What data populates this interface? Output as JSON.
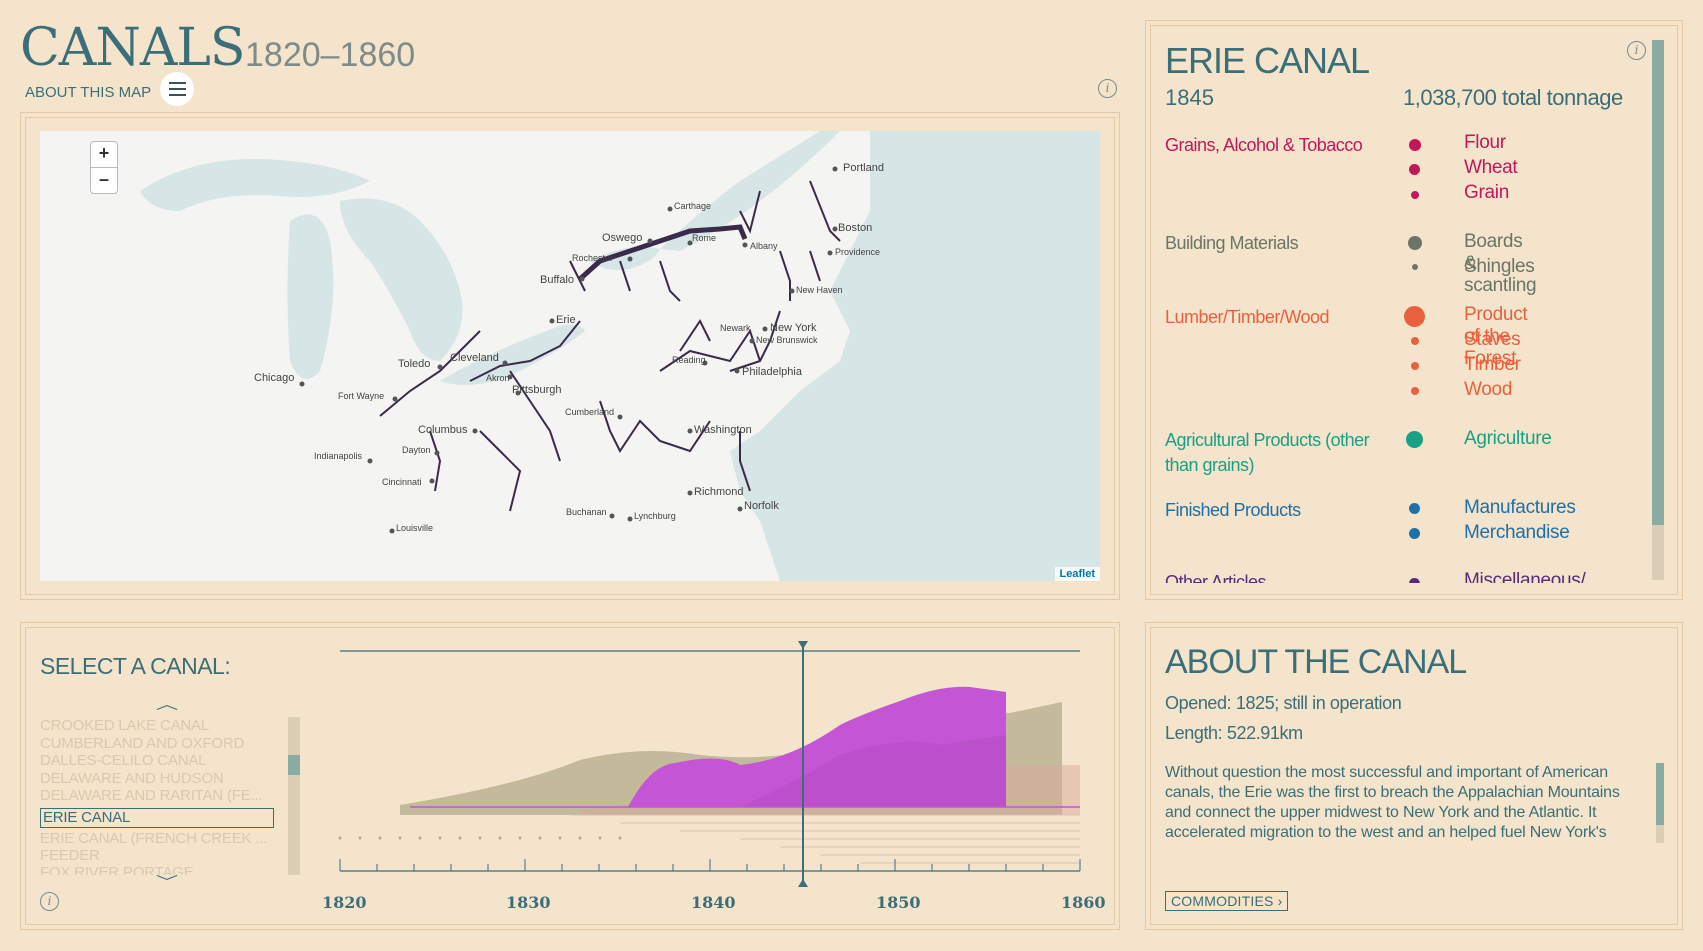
{
  "header": {
    "title": "CANALS",
    "years": "1820–1860",
    "about_link": "ABOUT THIS MAP"
  },
  "map": {
    "zoom_in": "+",
    "zoom_out": "–",
    "attribution": "Leaflet",
    "cities": [
      "Portland",
      "Carthage",
      "Oswego",
      "Rome",
      "Albany",
      "Boston",
      "Providence",
      "Rochester",
      "Buffalo",
      "New Haven",
      "Erie",
      "Newark",
      "New York",
      "New Brunswick",
      "Cleveland",
      "Toledo",
      "Akron",
      "Reading",
      "Philadelphia",
      "Chicago",
      "Fort Wayne",
      "Pittsburgh",
      "Cumberland",
      "Washington",
      "Columbus",
      "Dayton",
      "Indianapolis",
      "Cincinnati",
      "Richmond",
      "Norfolk",
      "Buchanan",
      "Lynchburg",
      "Louisville"
    ]
  },
  "detail": {
    "canal_name": "ERIE CANAL",
    "year": "1845",
    "tonnage": "1,038,700 total tonnage",
    "categories": [
      {
        "label": "Grains, Alcohol & Tobacco",
        "color": "#c2185b",
        "items": [
          "Flour",
          "Wheat",
          "Grain"
        ]
      },
      {
        "label": "Building Materials",
        "color": "#6b7566",
        "items": [
          "Boards & scantling",
          "Shingles"
        ]
      },
      {
        "label": "Lumber/Timber/Wood",
        "color": "#e9603f",
        "items": [
          "Product of the Forest",
          "Staves",
          "Timber",
          "Wood"
        ]
      },
      {
        "label": "Agricultural Products (other than grains)",
        "color": "#1aa084",
        "items": [
          "Agriculture"
        ]
      },
      {
        "label": "Finished Products",
        "color": "#1f6fa8",
        "items": [
          "Manufactures",
          "Merchandise"
        ]
      },
      {
        "label": "Other Articles",
        "color": "#5a2a7a",
        "items": [
          "Miscellaneous/"
        ]
      }
    ]
  },
  "selector": {
    "label": "SELECT A CANAL:",
    "canals": [
      "CROOKED LAKE CANAL",
      "CUMBERLAND AND OXFORD",
      "DALLES-CELILO CANAL",
      "DELAWARE AND HUDSON",
      "DELAWARE AND RARITAN (FE...",
      "ERIE CANAL",
      "ERIE CANAL (FRENCH CREEK ...",
      "FEEDER",
      "FOX RIVER PORTAGE"
    ],
    "selected": "ERIE CANAL"
  },
  "timeline": {
    "years": [
      "1820",
      "1830",
      "1840",
      "1850",
      "1860"
    ],
    "selected_year": 1845
  },
  "about": {
    "title": "ABOUT THE CANAL",
    "opened": "Opened: 1825; still in operation",
    "length": "Length: 522.91km",
    "description": "Without question the most successful and important of American canals, the Erie was the first to breach the Appalachian Mountains and connect the upper midwest to New York and the Atlantic. It accelerated migration to the west and an helped fuel New York's",
    "commodities_button": "COMMODITIES ›"
  }
}
